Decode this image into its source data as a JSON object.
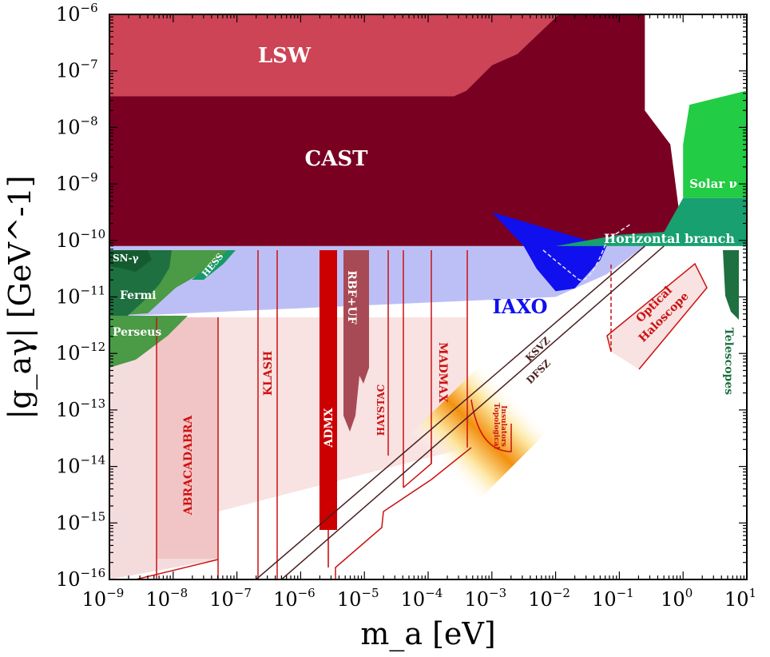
{
  "chart_data": {
    "type": "area",
    "title": "",
    "xlabel": "m_a [eV]",
    "ylabel": "|g_aγ| [GeV^-1]",
    "x_scale": "log",
    "y_scale": "log",
    "xlim_log10": [
      -9,
      1
    ],
    "ylim_log10": [
      -16,
      -6
    ],
    "x_ticks": [
      {
        "base": "10",
        "exp": "−9"
      },
      {
        "base": "10",
        "exp": "−8"
      },
      {
        "base": "10",
        "exp": "−7"
      },
      {
        "base": "10",
        "exp": "−6"
      },
      {
        "base": "10",
        "exp": "−5"
      },
      {
        "base": "10",
        "exp": "−4"
      },
      {
        "base": "10",
        "exp": "−3"
      },
      {
        "base": "10",
        "exp": "−2"
      },
      {
        "base": "10",
        "exp": "−1"
      },
      {
        "base": "10",
        "exp": "0"
      },
      {
        "base": "10",
        "exp": "1"
      }
    ],
    "y_ticks": [
      {
        "base": "10",
        "exp": "−16"
      },
      {
        "base": "10",
        "exp": "−15"
      },
      {
        "base": "10",
        "exp": "−14"
      },
      {
        "base": "10",
        "exp": "−13"
      },
      {
        "base": "10",
        "exp": "−12"
      },
      {
        "base": "10",
        "exp": "−11"
      },
      {
        "base": "10",
        "exp": "−10"
      },
      {
        "base": "10",
        "exp": "−9"
      },
      {
        "base": "10",
        "exp": "−8"
      },
      {
        "base": "10",
        "exp": "−7"
      },
      {
        "base": "10",
        "exp": "−6"
      }
    ],
    "colors": {
      "lsw": "#cc4455",
      "cast": "#7a0022",
      "iaxo_band": "#b0b4f5",
      "iaxo": "#1010ee",
      "haloscope": "#f5dcdc",
      "red_line": "#cc1111",
      "admx": "#cc0000",
      "rbf": "#a84a55",
      "green_dark": "#1e7040",
      "green_mid": "#4a9a46",
      "green_bright": "#22cc44",
      "hb_green": "#18a070",
      "model_band": "#f29010"
    },
    "regions": [
      {
        "id": "lsw",
        "label": "LSW",
        "points": [
          [
            -9,
            -6
          ],
          [
            -1.95,
            -6
          ],
          [
            -2.6,
            -6.7
          ],
          [
            -3,
            -6.9
          ],
          [
            -3.4,
            -7.35
          ],
          [
            -3.6,
            -7.45
          ],
          [
            -9,
            -7.45
          ]
        ]
      },
      {
        "id": "cast",
        "label": "CAST",
        "points": [
          [
            -9,
            -7.45
          ],
          [
            -3.6,
            -7.45
          ],
          [
            -3.4,
            -7.35
          ],
          [
            -3,
            -6.9
          ],
          [
            -2.6,
            -6.7
          ],
          [
            -1.95,
            -6
          ],
          [
            -0.6,
            -6
          ],
          [
            -0.6,
            -7.7
          ],
          [
            -0.2,
            -8.3
          ],
          [
            -0.05,
            -9.6
          ],
          [
            -0.03,
            -9.9
          ],
          [
            -0.5,
            -9.9
          ],
          [
            -1,
            -9.95
          ],
          [
            -1.3,
            -10
          ],
          [
            -1.6,
            -10.1
          ],
          [
            -9,
            -10.1
          ]
        ]
      },
      {
        "id": "iaxo_band",
        "label": "",
        "points": [
          [
            -9,
            -10.1
          ],
          [
            -0.6,
            -10.1
          ],
          [
            -1.2,
            -10.6
          ],
          [
            -2,
            -11
          ],
          [
            -9,
            -11.35
          ]
        ]
      },
      {
        "id": "iaxo",
        "label": "IAXO",
        "points": [
          [
            -3,
            -9.5
          ],
          [
            -2.5,
            -10.1
          ],
          [
            -2.3,
            -10.5
          ],
          [
            -2,
            -10.9
          ],
          [
            -1.7,
            -10.85
          ],
          [
            -1.5,
            -10.6
          ],
          [
            -1.3,
            -10.35
          ],
          [
            -1.2,
            -10.1
          ]
        ]
      },
      {
        "id": "solar_nu",
        "label": "Solar ν",
        "points": [
          [
            0,
            -9.25
          ],
          [
            0,
            -8.3
          ],
          [
            0.1,
            -7.6
          ],
          [
            1,
            -7.35
          ],
          [
            1,
            -9.25
          ]
        ]
      },
      {
        "id": "hb",
        "label": "Horizontal branch",
        "points": [
          [
            -2,
            -10.1
          ],
          [
            -1,
            -9.9
          ],
          [
            -0.3,
            -9.85
          ],
          [
            0,
            -9.25
          ],
          [
            1,
            -9.25
          ],
          [
            1,
            -10.1
          ]
        ]
      }
    ],
    "labels": {
      "lsw": "LSW",
      "cast": "CAST",
      "iaxo": "IAXO",
      "solar_nu": "Solar ν",
      "hb": "Horizontal branch",
      "sn_gamma": "SN-γ",
      "hess": "HESS",
      "fermi": "Fermi",
      "perseus": "Perseus",
      "abracadabra": "ABRACADABRA",
      "klash": "KLASH",
      "admx": "ADMX",
      "rbf_uf": "RBF+UF",
      "haystac": "HAYSTAC",
      "madmax": "MADMAX",
      "topological": "Topological",
      "insulators": "Insulators",
      "ksvz": "KSVZ",
      "dfsz": "DFSZ",
      "optical": "Optical",
      "haloscope": "Haloscope",
      "telescopes": "Telescopes"
    },
    "model_lines": [
      {
        "name": "KSVZ",
        "points": [
          [
            -6.7,
            -16
          ],
          [
            -0.6,
            -10.1
          ]
        ]
      },
      {
        "name": "DFSZ",
        "points": [
          [
            -6.3,
            -16
          ],
          [
            -0.3,
            -10.1
          ]
        ]
      }
    ]
  }
}
